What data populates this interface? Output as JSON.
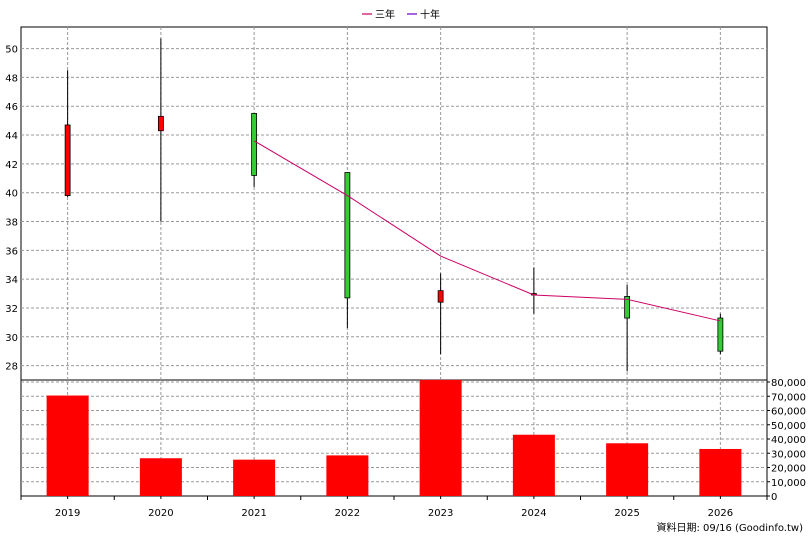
{
  "chart_data": [
    {
      "type": "candlestick",
      "panel": "price",
      "x": [
        "2019",
        "2020",
        "2021",
        "2022",
        "2023",
        "2024",
        "2025",
        "2026"
      ],
      "ohlc": [
        {
          "open": 39.8,
          "high": 48.5,
          "low": 39.7,
          "close": 44.7,
          "color": "red"
        },
        {
          "open": 44.3,
          "high": 50.7,
          "low": 38.0,
          "close": 45.3,
          "color": "red"
        },
        {
          "open": 45.5,
          "high": 45.5,
          "low": 40.4,
          "close": 41.2,
          "color": "green"
        },
        {
          "open": 41.4,
          "high": 41.4,
          "low": 30.6,
          "close": 32.7,
          "color": "green"
        },
        {
          "open": 32.4,
          "high": 34.4,
          "low": 28.8,
          "close": 33.2,
          "color": "red"
        },
        {
          "open": 32.9,
          "high": 34.8,
          "low": 31.6,
          "close": 33.0,
          "color": "red"
        },
        {
          "open": 32.8,
          "high": 33.6,
          "low": 27.6,
          "close": 31.3,
          "color": "green"
        },
        {
          "open": 31.3,
          "high": 31.6,
          "low": 28.8,
          "close": 29.0,
          "color": "green"
        }
      ],
      "series": [
        {
          "name": "三年",
          "color": "#cc0066",
          "x": [
            "2021",
            "2022",
            "2023",
            "2024",
            "2025",
            "2026"
          ],
          "values": [
            43.6,
            39.8,
            35.6,
            32.9,
            32.6,
            31.1
          ]
        },
        {
          "name": "十年",
          "color": "#6600cc",
          "x": [],
          "values": []
        }
      ],
      "ylim": [
        27,
        51.5
      ],
      "yticks": [
        "28",
        "30",
        "32",
        "34",
        "36",
        "38",
        "40",
        "42",
        "44",
        "46",
        "48",
        "50"
      ],
      "grid": true,
      "legend": "top-center"
    },
    {
      "type": "bar",
      "panel": "volume",
      "categories": [
        "2019",
        "2020",
        "2021",
        "2022",
        "2023",
        "2024",
        "2025",
        "2026"
      ],
      "values": [
        70500,
        26500,
        25500,
        28500,
        81500,
        43000,
        37000,
        33000
      ],
      "ylim": [
        0,
        80000
      ],
      "yticks": [
        "0",
        "10,000",
        "20,000",
        "30,000",
        "40,000",
        "50,000",
        "60,000",
        "70,000",
        "80,000"
      ],
      "color": "#ff0000"
    }
  ],
  "footer": {
    "text": "資料日期: 09/16  (Goodinfo.tw)"
  }
}
